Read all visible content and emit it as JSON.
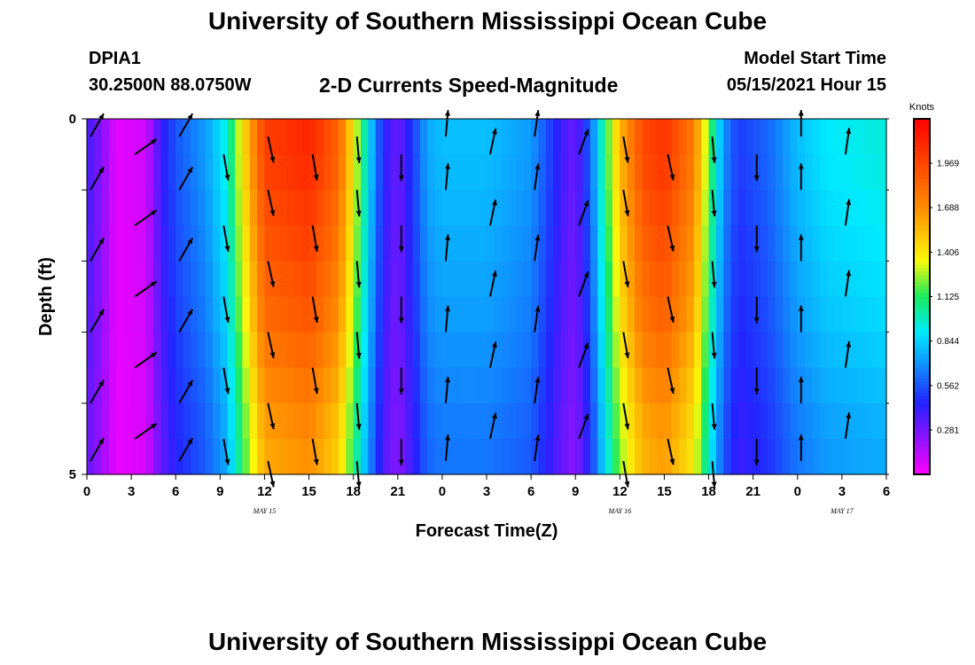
{
  "header": {
    "title": "University of Southern Mississippi Ocean Cube",
    "station": "DPIA1",
    "coordinates": "30.2500N  88.0750W",
    "subtitle": "2-D Currents Speed-Magnitude",
    "model_start_label": "Model Start Time",
    "model_start_value": "05/15/2021 Hour 15"
  },
  "footer": {
    "title": "University of Southern Mississippi Ocean Cube"
  },
  "chart_data": {
    "type": "heatmap",
    "xlabel": "Forecast Time(Z)",
    "ylabel": "Depth (ft)",
    "x_range_hours": [
      0,
      54
    ],
    "y_range_ft": [
      0,
      5
    ],
    "x_tick_labels": [
      "0",
      "3",
      "6",
      "9",
      "12",
      "15",
      "18",
      "21",
      "0",
      "3",
      "6",
      "9",
      "12",
      "15",
      "18",
      "21",
      "0",
      "3",
      "6"
    ],
    "y_tick_labels": [
      "0",
      "5"
    ],
    "date_labels": [
      {
        "label": "MAY 15",
        "hour": 12
      },
      {
        "label": "MAY 16",
        "hour": 36
      },
      {
        "label": "MAY 17",
        "hour": 51
      }
    ],
    "colorbar": {
      "unit": "Knots",
      "min": 0.0,
      "max": 2.25,
      "ticks": [
        1.969,
        1.688,
        1.406,
        1.125,
        0.844,
        0.562,
        0.281
      ],
      "tick_labels": [
        "1.969",
        "1.688",
        "1.406",
        "1.125",
        "0.844",
        "0.562",
        "0.281"
      ]
    },
    "depth_levels_ft": [
      0,
      0.5,
      1,
      1.5,
      2,
      2.5,
      3,
      3.5,
      4,
      4.5,
      5
    ],
    "speed_knots_by_hour_surface": [
      {
        "hour": 0,
        "v": 0.4
      },
      {
        "hour": 1,
        "v": 0.25
      },
      {
        "hour": 2,
        "v": 0.05
      },
      {
        "hour": 4,
        "v": 0.1
      },
      {
        "hour": 5,
        "v": 0.4
      },
      {
        "hour": 6,
        "v": 0.56
      },
      {
        "hour": 8,
        "v": 0.72
      },
      {
        "hour": 9.5,
        "v": 0.95
      },
      {
        "hour": 10,
        "v": 1.2
      },
      {
        "hour": 11,
        "v": 1.6
      },
      {
        "hour": 12,
        "v": 2.0
      },
      {
        "hour": 15,
        "v": 2.1
      },
      {
        "hour": 17,
        "v": 1.85
      },
      {
        "hour": 18,
        "v": 1.4
      },
      {
        "hour": 19,
        "v": 0.9
      },
      {
        "hour": 20,
        "v": 0.45
      },
      {
        "hour": 21,
        "v": 0.3
      },
      {
        "hour": 22,
        "v": 0.5
      },
      {
        "hour": 23,
        "v": 0.75
      },
      {
        "hour": 24,
        "v": 0.8
      },
      {
        "hour": 27,
        "v": 0.8
      },
      {
        "hour": 30,
        "v": 0.72
      },
      {
        "hour": 31,
        "v": 0.56
      },
      {
        "hour": 32,
        "v": 0.4
      },
      {
        "hour": 33,
        "v": 0.3
      },
      {
        "hour": 34,
        "v": 0.6
      },
      {
        "hour": 35,
        "v": 1.1
      },
      {
        "hour": 36,
        "v": 1.55
      },
      {
        "hour": 37.5,
        "v": 1.95
      },
      {
        "hour": 39,
        "v": 2.05
      },
      {
        "hour": 41,
        "v": 1.75
      },
      {
        "hour": 42,
        "v": 1.2
      },
      {
        "hour": 43,
        "v": 0.7
      },
      {
        "hour": 44,
        "v": 0.5
      },
      {
        "hour": 46,
        "v": 0.6
      },
      {
        "hour": 48,
        "v": 0.8
      },
      {
        "hour": 50,
        "v": 0.9
      },
      {
        "hour": 54,
        "v": 0.95
      }
    ],
    "depth_attenuation": [
      1.0,
      0.99,
      0.97,
      0.95,
      0.93,
      0.91,
      0.88,
      0.85,
      0.82,
      0.8,
      0.78
    ],
    "current_direction_deg_by_hour": [
      {
        "hour": 0,
        "dir": 30
      },
      {
        "hour": 3,
        "dir": 55
      },
      {
        "hour": 6,
        "dir": 30
      },
      {
        "hour": 9,
        "dir": 170
      },
      {
        "hour": 12,
        "dir": 168
      },
      {
        "hour": 15,
        "dir": 170
      },
      {
        "hour": 18,
        "dir": 175
      },
      {
        "hour": 21,
        "dir": 180
      },
      {
        "hour": 24,
        "dir": 5
      },
      {
        "hour": 27,
        "dir": 12
      },
      {
        "hour": 30,
        "dir": 8
      },
      {
        "hour": 33,
        "dir": 20
      },
      {
        "hour": 36,
        "dir": 170
      },
      {
        "hour": 39,
        "dir": 168
      },
      {
        "hour": 42,
        "dir": 175
      },
      {
        "hour": 45,
        "dir": 180
      },
      {
        "hour": 48,
        "dir": 0
      },
      {
        "hour": 51,
        "dir": 8
      }
    ]
  }
}
